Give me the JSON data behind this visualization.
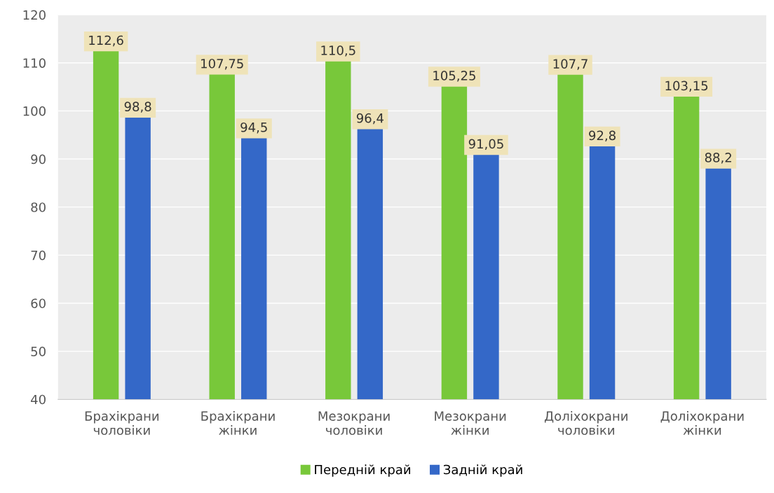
{
  "chart_data": {
    "type": "bar",
    "categories": [
      "Брахікрани\nчоловіки",
      "Брахікрани\nжінки",
      "Мезокрани\nчоловіки",
      "Мезокрани\nжінки",
      "Доліхокрани\nчоловіки",
      "Доліхокрани\nжінки"
    ],
    "series": [
      {
        "name": "Передній край",
        "color": "#78c83a",
        "values": [
          112.6,
          107.75,
          110.5,
          105.25,
          107.7,
          103.15
        ],
        "value_labels": [
          "112,6",
          "107,75",
          "110,5",
          "105,25",
          "107,7",
          "103,15"
        ]
      },
      {
        "name": "Задній край",
        "color": "#3468c8",
        "values": [
          98.8,
          94.5,
          96.4,
          91.05,
          92.8,
          88.2
        ],
        "value_labels": [
          "98,8",
          "94,5",
          "96,4",
          "91,05",
          "92,8",
          "88,2"
        ]
      }
    ],
    "ylim": [
      40,
      120
    ],
    "yticks": [
      40,
      50,
      60,
      70,
      80,
      90,
      100,
      110,
      120
    ],
    "grid": "y",
    "legend": "bottom"
  }
}
